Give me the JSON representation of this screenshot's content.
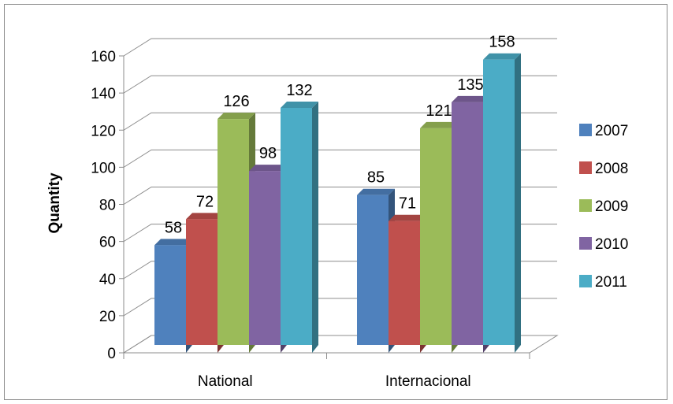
{
  "chart_data": {
    "type": "bar",
    "categories": [
      "National",
      "Internacional"
    ],
    "series": [
      {
        "name": "2007",
        "values": [
          58,
          85
        ],
        "color": "#4f81bd"
      },
      {
        "name": "2008",
        "values": [
          72,
          71
        ],
        "color": "#c0504d"
      },
      {
        "name": "2009",
        "values": [
          126,
          121
        ],
        "color": "#9bbb59"
      },
      {
        "name": "2010",
        "values": [
          98,
          135
        ],
        "color": "#8064a2"
      },
      {
        "name": "2011",
        "values": [
          132,
          158
        ],
        "color": "#4bacc6"
      }
    ],
    "ylabel": "Quantity",
    "xlabel": "",
    "ylim": [
      0,
      160
    ],
    "yticks": [
      0,
      20,
      40,
      60,
      80,
      100,
      120,
      140,
      160
    ],
    "grid": true,
    "legend": "right",
    "style": "3d-clustered-column"
  }
}
